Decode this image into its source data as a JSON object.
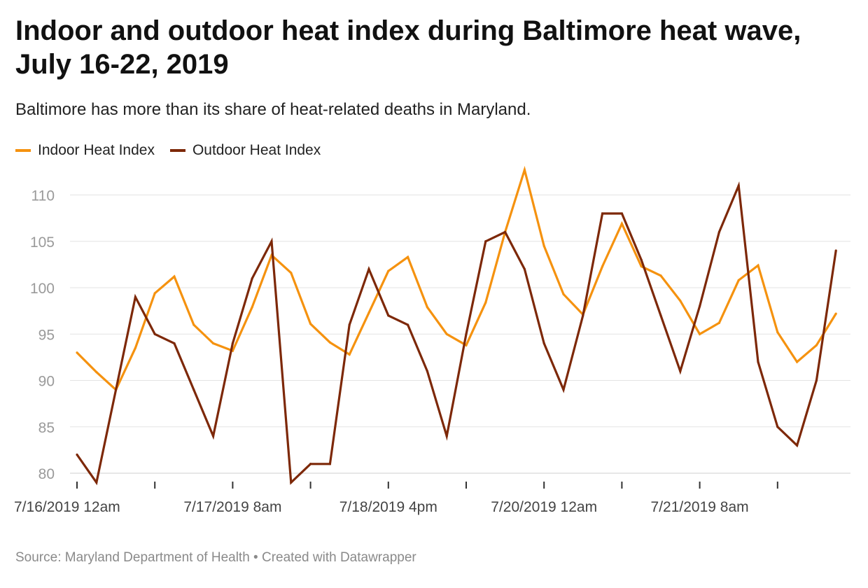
{
  "chart_data": {
    "type": "line",
    "title": "Indoor and outdoor heat index during Baltimore heat wave, July 16-22, 2019",
    "subtitle": "Baltimore has more than its share of heat-related deaths in Maryland.",
    "xlabel": "",
    "ylabel": "",
    "ylim": [
      80,
      112
    ],
    "yticks": [
      80,
      85,
      90,
      95,
      100,
      105,
      110
    ],
    "grid": true,
    "legend_position": "top-left",
    "x_tick_labels": [
      {
        "index": 0,
        "label": "7/16/2019 12am"
      },
      {
        "index": 8,
        "label": "7/17/2019 8am"
      },
      {
        "index": 16,
        "label": "7/18/2019 4pm"
      },
      {
        "index": 24,
        "label": "7/20/2019 12am"
      },
      {
        "index": 32,
        "label": "7/21/2019 8am"
      }
    ],
    "x_tick_marks": [
      0,
      4,
      8,
      12,
      16,
      20,
      24,
      28,
      32,
      36
    ],
    "series": [
      {
        "name": "Indoor Heat Index",
        "color": "#f5920f",
        "values": [
          93,
          90.9,
          89,
          93.5,
          99.4,
          101.2,
          96,
          94,
          93.2,
          97.9,
          103.5,
          101.6,
          96.1,
          94.1,
          92.8,
          97.3,
          101.8,
          103.3,
          97.9,
          95,
          93.8,
          98.4,
          106,
          112.7,
          104.5,
          99.3,
          97.1,
          102.3,
          106.9,
          102.3,
          101.3,
          98.6,
          95,
          96.2,
          100.8,
          102.4,
          95.2,
          92,
          93.8,
          97.2
        ]
      },
      {
        "name": "Outdoor Heat Index",
        "color": "#7d2808",
        "values": [
          82,
          79,
          89,
          99,
          95,
          94,
          89,
          84,
          94,
          101,
          105,
          79,
          81,
          81,
          96,
          102,
          97,
          96,
          91,
          84,
          95,
          105,
          106,
          102,
          94,
          89,
          97,
          108,
          108,
          103,
          97,
          91,
          98,
          106,
          111,
          92,
          85,
          83,
          90,
          104
        ]
      }
    ]
  },
  "footer": {
    "source": "Source: Maryland Department of Health",
    "separator": " • ",
    "credit": "Created with Datawrapper"
  }
}
